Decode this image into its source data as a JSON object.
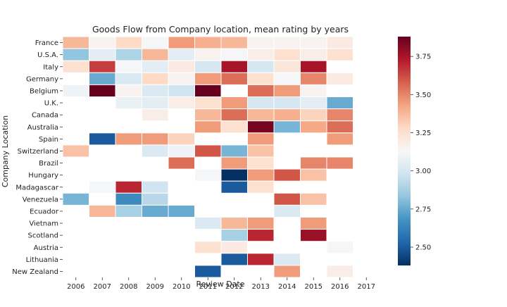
{
  "chart_data": {
    "type": "heatmap",
    "title": "Goods Flow from Company location, mean rating by years",
    "xlabel": "Review Date",
    "ylabel": "Company Location",
    "x": [
      "2006",
      "2007",
      "2008",
      "2009",
      "2010",
      "2011",
      "2012",
      "2013",
      "2014",
      "2015",
      "2016",
      "2017"
    ],
    "y": [
      "France",
      "U.S.A.",
      "Italy",
      "Germany",
      "Belgium",
      "U.K.",
      "Canada",
      "Australia",
      "Spain",
      "Switzerland",
      "Brazil",
      "Hungary",
      "Madagascar",
      "Venezuela",
      "Ecuador",
      "Vietnam",
      "Scotland",
      "Austria",
      "Lithuania",
      "New Zealand"
    ],
    "values": [
      [
        3.38,
        3.15,
        3.28,
        3.12,
        3.45,
        3.4,
        3.38,
        3.15,
        3.15,
        3.15,
        3.2,
        null
      ],
      [
        2.83,
        3.05,
        2.9,
        3.38,
        3.05,
        3.15,
        3.12,
        3.18,
        3.25,
        3.18,
        3.25,
        null
      ],
      [
        3.25,
        3.65,
        3.12,
        3.05,
        3.2,
        3.0,
        3.75,
        3.0,
        3.22,
        3.75,
        null,
        null
      ],
      [
        null,
        2.75,
        3.02,
        3.28,
        3.15,
        3.45,
        3.55,
        3.25,
        3.12,
        3.5,
        3.2,
        null
      ],
      [
        3.1,
        3.88,
        3.15,
        3.02,
        2.98,
        3.88,
        null,
        3.55,
        3.45,
        3.15,
        null,
        null
      ],
      [
        null,
        null,
        3.08,
        3.05,
        3.18,
        3.25,
        3.45,
        3.0,
        3.0,
        3.05,
        2.75,
        null
      ],
      [
        null,
        null,
        null,
        3.18,
        null,
        3.38,
        3.55,
        3.38,
        3.4,
        3.3,
        3.5,
        null
      ],
      [
        null,
        null,
        null,
        null,
        null,
        3.45,
        3.25,
        3.85,
        2.78,
        3.42,
        3.55,
        null
      ],
      [
        null,
        2.5,
        3.45,
        3.45,
        3.3,
        null,
        null,
        3.45,
        null,
        null,
        3.45,
        null
      ],
      [
        3.35,
        null,
        null,
        3.02,
        3.1,
        3.6,
        2.78,
        3.35,
        null,
        null,
        null,
        null
      ],
      [
        null,
        null,
        null,
        null,
        3.55,
        null,
        3.45,
        3.25,
        null,
        3.5,
        3.5,
        null
      ],
      [
        null,
        null,
        null,
        null,
        null,
        3.12,
        2.38,
        3.45,
        3.6,
        3.35,
        null,
        null
      ],
      [
        null,
        3.12,
        3.7,
        2.98,
        null,
        null,
        2.5,
        3.25,
        null,
        null,
        null,
        null
      ],
      [
        2.78,
        null,
        2.65,
        2.92,
        null,
        null,
        null,
        null,
        3.6,
        3.35,
        null,
        null
      ],
      [
        null,
        3.38,
        2.88,
        2.75,
        2.75,
        null,
        null,
        null,
        3.02,
        null,
        null,
        null
      ],
      [
        null,
        null,
        null,
        null,
        null,
        3.02,
        3.38,
        3.45,
        null,
        3.45,
        null,
        null
      ],
      [
        null,
        null,
        null,
        null,
        null,
        null,
        2.88,
        3.7,
        null,
        3.78,
        null,
        null
      ],
      [
        null,
        null,
        null,
        null,
        null,
        3.25,
        3.2,
        null,
        null,
        null,
        3.12,
        null
      ],
      [
        null,
        null,
        null,
        null,
        null,
        null,
        2.5,
        3.7,
        3.02,
        null,
        null,
        null
      ],
      [
        null,
        null,
        null,
        null,
        null,
        2.5,
        null,
        null,
        3.45,
        null,
        3.18,
        null
      ]
    ],
    "colorbar": {
      "colormap": "RdBu_r",
      "range": [
        2.38,
        3.88
      ],
      "ticks": [
        2.5,
        2.75,
        3.0,
        3.25,
        3.5,
        3.75
      ],
      "tick_labels": [
        "2.50",
        "2.75",
        "3.00",
        "3.25",
        "3.50",
        "3.75"
      ]
    },
    "grid": false,
    "legend": "colorbar-right"
  }
}
